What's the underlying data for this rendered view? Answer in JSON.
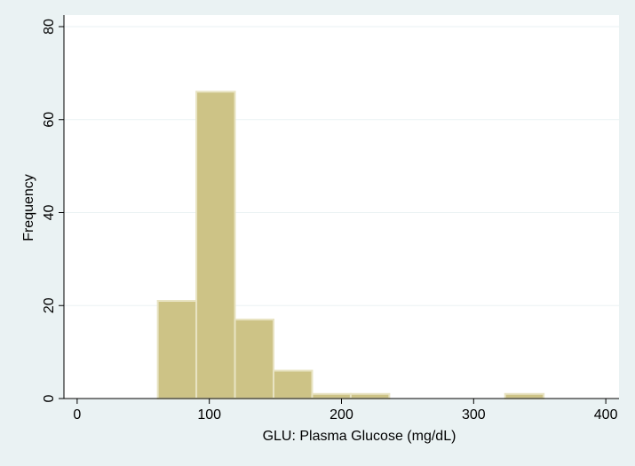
{
  "chart_data": {
    "type": "bar",
    "xlabel": "GLU: Plasma Glucose (mg/dL)",
    "ylabel": "Frequency",
    "xlim": [
      -10,
      410
    ],
    "ylim": [
      0,
      80
    ],
    "xticks": [
      0,
      100,
      200,
      300,
      400
    ],
    "yticks": [
      0,
      20,
      40,
      60,
      80
    ],
    "grid": true,
    "bins": [
      {
        "x0": 61,
        "x1": 90.2,
        "value": 21
      },
      {
        "x0": 90.2,
        "x1": 119.4,
        "value": 66
      },
      {
        "x0": 119.4,
        "x1": 148.6,
        "value": 17
      },
      {
        "x0": 148.6,
        "x1": 177.8,
        "value": 6
      },
      {
        "x0": 177.8,
        "x1": 207,
        "value": 1
      },
      {
        "x0": 207,
        "x1": 236.2,
        "value": 1
      },
      {
        "x0": 323.8,
        "x1": 353,
        "value": 1
      }
    ],
    "colors": {
      "background": "#eaf2f3",
      "plot_background": "#ffffff",
      "bar_fill": "#cdc386",
      "bar_stroke": "#e8e3c2",
      "grid": "#eaf2f3",
      "axis": "#000000"
    }
  }
}
